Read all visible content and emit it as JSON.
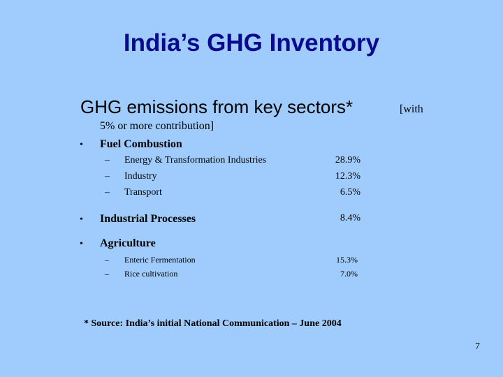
{
  "title": "India’s GHG Inventory",
  "heading": {
    "main": "GHG emissions from key sectors*",
    "note_start": "[with",
    "note_end": "5% or more contribution]"
  },
  "sections": [
    {
      "label": "Fuel Combustion",
      "items": [
        {
          "label": "Energy & Transformation Industries",
          "value": "28.9%"
        },
        {
          "label": "Industry",
          "value": "12.3%"
        },
        {
          "label": "Transport",
          "value": "6.5%"
        }
      ]
    },
    {
      "label": "Industrial Processes",
      "value": "8.4%"
    },
    {
      "label": "Agriculture",
      "items": [
        {
          "label": "Enteric Fermentation",
          "value": "15.3%"
        },
        {
          "label": "Rice cultivation",
          "value": "7.0%"
        }
      ]
    }
  ],
  "footnote": "* Source: India’s initial National Communication – June 2004",
  "page_number": "7"
}
